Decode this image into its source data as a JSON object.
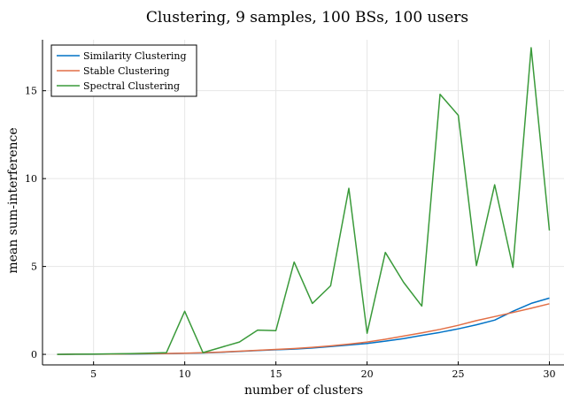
{
  "chart_data": {
    "type": "line",
    "title": "Clustering, 9 samples, 100 BSs, 100 users",
    "xlabel": "number of clusters",
    "ylabel": "mean sum-interference",
    "xlim": [
      2.2,
      30.8
    ],
    "ylim": [
      -0.6,
      17.9
    ],
    "xticks": [
      5,
      10,
      15,
      20,
      25,
      30
    ],
    "yticks": [
      0,
      5,
      10,
      15
    ],
    "grid": true,
    "legend_position": "top-left",
    "x": [
      3,
      4,
      5,
      6,
      7,
      8,
      9,
      10,
      11,
      12,
      13,
      14,
      15,
      16,
      17,
      18,
      19,
      20,
      21,
      22,
      23,
      24,
      25,
      26,
      27,
      28,
      29,
      30
    ],
    "series": [
      {
        "name": "Similarity Clustering",
        "color": "#0072c6",
        "values": [
          0.0,
          0.01,
          0.01,
          0.02,
          0.02,
          0.03,
          0.04,
          0.06,
          0.08,
          0.12,
          0.17,
          0.22,
          0.26,
          0.3,
          0.36,
          0.44,
          0.53,
          0.62,
          0.75,
          0.9,
          1.08,
          1.25,
          1.45,
          1.68,
          1.95,
          2.45,
          2.9,
          3.2
        ]
      },
      {
        "name": "Stable Clustering",
        "color": "#e26f46",
        "values": [
          0.0,
          0.01,
          0.01,
          0.02,
          0.03,
          0.04,
          0.05,
          0.07,
          0.09,
          0.13,
          0.18,
          0.23,
          0.28,
          0.33,
          0.4,
          0.48,
          0.58,
          0.7,
          0.86,
          1.04,
          1.22,
          1.42,
          1.65,
          1.92,
          2.15,
          2.38,
          2.62,
          2.88
        ]
      },
      {
        "name": "Spectral Clustering",
        "color": "#3a9a3a",
        "values": [
          0.0,
          0.01,
          0.02,
          0.03,
          0.04,
          0.07,
          0.1,
          2.45,
          0.1,
          0.4,
          0.7,
          1.38,
          1.35,
          5.25,
          2.9,
          3.9,
          9.45,
          1.2,
          5.8,
          4.1,
          2.75,
          14.8,
          13.6,
          5.05,
          9.65,
          4.95,
          17.45,
          7.05
        ]
      }
    ]
  }
}
